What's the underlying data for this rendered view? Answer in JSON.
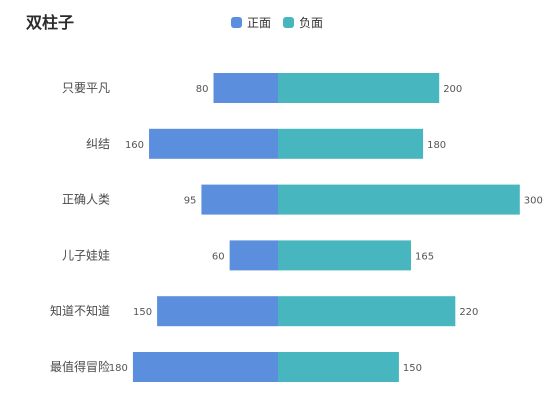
{
  "chart_data": {
    "type": "bar",
    "orientation": "horizontal-diverging",
    "title": "双柱子",
    "categories": [
      "只要平凡",
      "纠结",
      "正确人类",
      "儿子娃娃",
      "知道不知道",
      "最值得冒险"
    ],
    "series": [
      {
        "name": "正面",
        "values": [
          80,
          160,
          95,
          60,
          150,
          180
        ],
        "color": "#5B8FDD"
      },
      {
        "name": "负面",
        "values": [
          200,
          180,
          300,
          165,
          220,
          150
        ],
        "color": "#48B6BE"
      }
    ],
    "legend_position": "top",
    "grid": false
  }
}
